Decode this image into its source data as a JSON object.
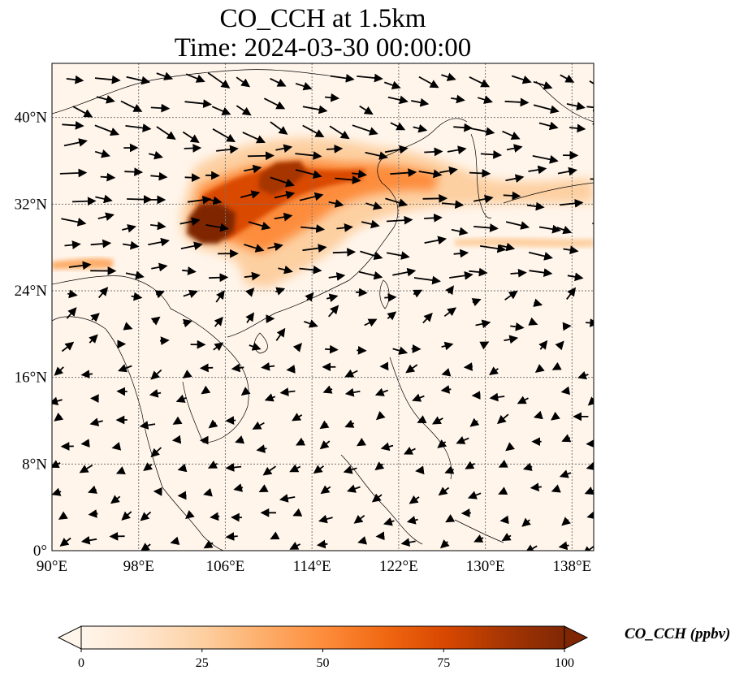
{
  "title": "CO_CCH at 1.5km",
  "subtitle": "Time: 2024-03-30 00:00:00",
  "map": {
    "lon_range": [
      90,
      140
    ],
    "lat_range": [
      0,
      45
    ],
    "lon_ticks": [
      "90°E",
      "98°E",
      "106°E",
      "114°E",
      "122°E",
      "130°E",
      "138°E"
    ],
    "lat_ticks": [
      "0°",
      "8°N",
      "16°N",
      "24°N",
      "32°N",
      "40°N"
    ],
    "gridlines": true
  },
  "colorbar": {
    "label": "CO_CCH (ppbv)",
    "ticks": [
      "0",
      "25",
      "50",
      "75",
      "100"
    ],
    "range": [
      0,
      100
    ],
    "extend": "both",
    "colormap": [
      "#fff5eb",
      "#fee6ce",
      "#fdd0a2",
      "#fdae6b",
      "#fd8d3c",
      "#f16913",
      "#d94801",
      "#a63603",
      "#7f2704"
    ]
  }
}
